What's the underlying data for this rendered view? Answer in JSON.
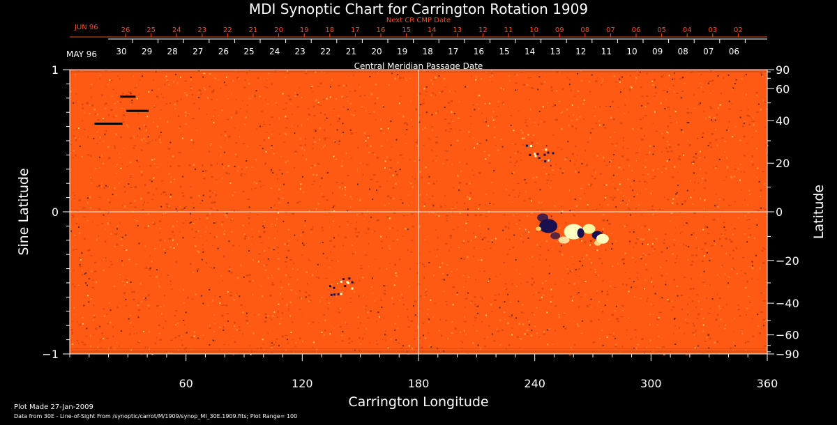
{
  "chart_data": {
    "type": "heatmap",
    "title": "MDI Synoptic Chart for Carrington Rotation 1909",
    "xlabel": "Carrington Longitude",
    "ylabel_left": "Sine Latitude",
    "ylabel_right": "Latitude",
    "xlim": [
      0,
      360
    ],
    "ylim": [
      -1,
      1
    ],
    "x_ticks": [
      60,
      120,
      180,
      240,
      300,
      360
    ],
    "y_ticks_left": [
      {
        "value": 1,
        "label": "1"
      },
      {
        "value": 0,
        "label": "0"
      },
      {
        "value": -1,
        "label": "−1"
      }
    ],
    "y_ticks_right": [
      90,
      60,
      40,
      20,
      0,
      -20,
      -40,
      -60,
      -90
    ],
    "top_axis_main": {
      "month_label": "MAY 96",
      "caption": "Central Meridian Passage Date",
      "day_labels": [
        "30",
        "29",
        "28",
        "27",
        "26",
        "25",
        "24",
        "23",
        "22",
        "21",
        "20",
        "19",
        "18",
        "17",
        "16",
        "15",
        "14",
        "13",
        "12",
        "11",
        "10",
        "09",
        "08",
        "07",
        "06"
      ]
    },
    "top_axis_next": {
      "month_label": "JUN 96",
      "caption": "Next CR CMP Date",
      "day_labels": [
        "26",
        "25",
        "24",
        "23",
        "22",
        "21",
        "20",
        "19",
        "18",
        "17",
        "16",
        "15",
        "14",
        "13",
        "12",
        "11",
        "10",
        "09",
        "08",
        "07",
        "06",
        "05",
        "04",
        "03",
        "02"
      ]
    },
    "crosshair": {
      "longitude": 180,
      "sine_latitude": 0
    },
    "colors": {
      "background": "#ff5a14",
      "positive": "#ffffc0",
      "negative": "#1a1050",
      "label_accent": "#ff4a1a"
    },
    "features": [
      {
        "type": "active-region",
        "longitude": 263,
        "sine_latitude": -0.14,
        "polarity": "bipolar"
      },
      {
        "type": "active-region",
        "longitude": 247,
        "sine_latitude": -0.1,
        "polarity": "negative"
      },
      {
        "type": "active-region",
        "longitude": 275,
        "sine_latitude": -0.19,
        "polarity": "positive"
      },
      {
        "type": "active-region",
        "longitude": 242,
        "sine_latitude": 0.42,
        "polarity": "mixed"
      },
      {
        "type": "active-region",
        "longitude": 140,
        "sine_latitude": -0.52,
        "polarity": "mixed"
      },
      {
        "type": "data-gap",
        "longitude": 30,
        "sine_latitude": 0.81
      },
      {
        "type": "data-gap",
        "longitude": 35,
        "sine_latitude": 0.71
      },
      {
        "type": "data-gap",
        "longitude": 20,
        "sine_latitude": 0.62
      }
    ],
    "footer_line1": "Plot Made 27-Jan-2009",
    "footer_line2": "Data from 30E - Line-of-Sight From /synoptic/carrot/M/1909/synop_Ml_30E.1909.fits; Plot Range=  100"
  }
}
